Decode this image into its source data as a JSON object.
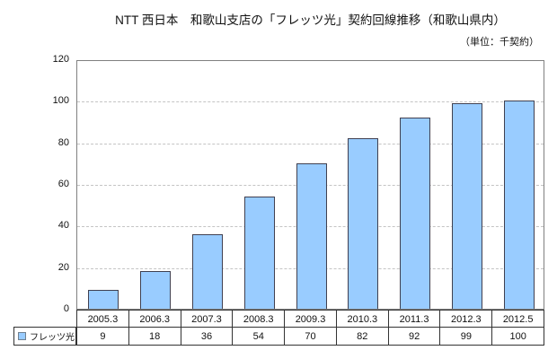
{
  "header": {
    "title": "NTT 西日本　和歌山支店の「フレッツ光」契約回線推移（和歌山県内）",
    "unit_note": "（単位：千契約）"
  },
  "legend": {
    "label": "フレッツ光"
  },
  "colors": {
    "background": "#FFFFFF",
    "bar_fill": "#99CCFF",
    "bar_border": "#404050",
    "gridline": "#C4C4C4",
    "plot_border": "#808080",
    "table_border": "#333333",
    "legend_marker_border": "#708090",
    "text": "#111111"
  },
  "chart_data": {
    "type": "bar",
    "title": "NTT 西日本　和歌山支店の「フレッツ光」契約回線推移（和歌山県内）",
    "unit_label": "（単位：千契約）",
    "categories": [
      "2005.3",
      "2006.3",
      "2007.3",
      "2008.3",
      "2009.3",
      "2010.3",
      "2011.3",
      "2012.3",
      "2012.5"
    ],
    "series": [
      {
        "name": "フレッツ光",
        "values": [
          9,
          18,
          36,
          54,
          70,
          82,
          92,
          99,
          100
        ]
      }
    ],
    "ylabel": "",
    "xlabel": "",
    "ylim": [
      0,
      120
    ],
    "yticks": [
      0,
      20,
      40,
      60,
      80,
      100,
      120
    ],
    "grid": true,
    "grid_style": "dashed",
    "legend_position": "data-table-left",
    "data_table_shown": true
  }
}
